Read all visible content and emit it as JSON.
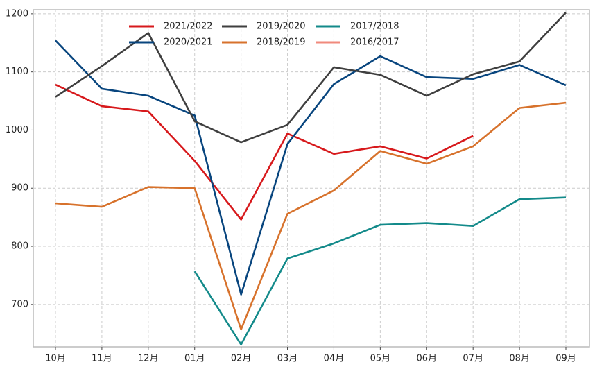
{
  "chart_data": {
    "type": "line",
    "categories": [
      "10月",
      "11月",
      "12月",
      "01月",
      "02月",
      "03月",
      "04月",
      "05月",
      "06月",
      "07月",
      "08月",
      "09月"
    ],
    "series": [
      {
        "name": "2021/2022",
        "color": "#d7191c",
        "values": [
          1078,
          1041,
          1032,
          947,
          846,
          994,
          959,
          972,
          951,
          990,
          null,
          null
        ]
      },
      {
        "name": "2020/2021",
        "color": "#08457e",
        "values": [
          1154,
          1071,
          1059,
          1025,
          717,
          976,
          1079,
          1127,
          1091,
          1088,
          1112,
          1077
        ]
      },
      {
        "name": "2019/2020",
        "color": "#3f3f3f",
        "values": [
          1057,
          1110,
          1167,
          1015,
          979,
          1009,
          1108,
          1095,
          1059,
          1096,
          1118,
          1202
        ]
      },
      {
        "name": "2018/2019",
        "color": "#d7722c",
        "values": [
          874,
          868,
          902,
          900,
          657,
          856,
          896,
          964,
          942,
          972,
          1038,
          1047
        ]
      },
      {
        "name": "2017/2018",
        "color": "#138a8a",
        "values": [
          null,
          null,
          null,
          757,
          631,
          779,
          805,
          837,
          840,
          835,
          881,
          884
        ]
      },
      {
        "name": "2016/2017",
        "color": "#f08a7c",
        "values": [
          null,
          null,
          null,
          null,
          null,
          null,
          null,
          null,
          null,
          null,
          null,
          null
        ]
      }
    ],
    "ylim": [
      627,
      1207
    ],
    "yticks": [
      700,
      800,
      900,
      1000,
      1100,
      1200
    ],
    "grid": true,
    "legend": "upper center"
  }
}
